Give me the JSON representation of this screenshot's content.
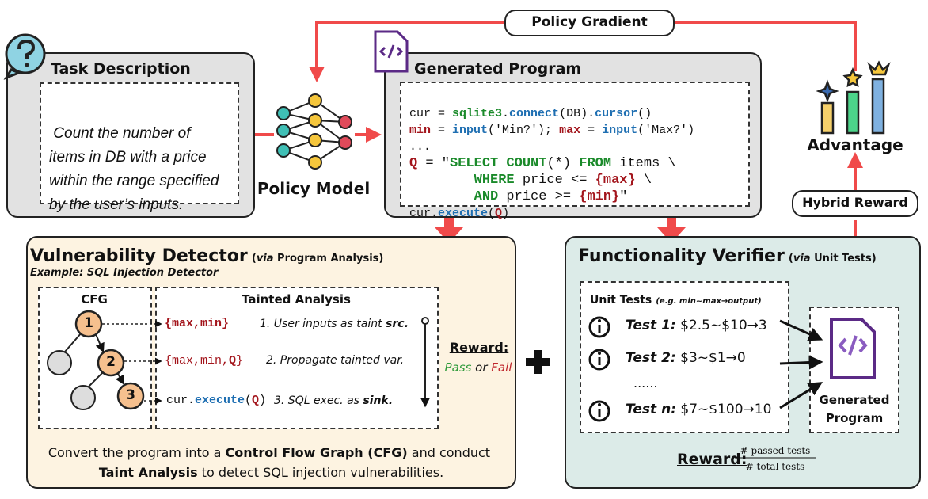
{
  "policy_gradient": "Policy Gradient",
  "task": {
    "title": "Task Description",
    "lines": [
      "Count the number of",
      "items in DB with a price",
      "within the range specified",
      "by the user’s inputs."
    ]
  },
  "policy_model": "Policy Model",
  "program": {
    "title": "Generated Program",
    "code": [
      [
        "cur = ",
        "sqlite3",
        ".",
        "connect",
        "(DB).",
        "cursor",
        "()"
      ],
      [
        "min",
        " = ",
        "input",
        "('Min?'); ",
        "max",
        " = ",
        "input",
        "('Max?')"
      ],
      [
        "..."
      ],
      [
        "Q",
        " = \"",
        "SELECT COUNT",
        "(*) ",
        "FROM",
        " items \\"
      ],
      [
        "        ",
        "WHERE",
        " price <= ",
        "{max}",
        " \\"
      ],
      [
        "        ",
        "AND",
        " price >= ",
        "{min}",
        "\""
      ],
      [
        "cur.",
        "execute",
        "(",
        "Q",
        ")"
      ]
    ]
  },
  "advantage": "Advantage",
  "hybrid_reward": "Hybrid Reward",
  "detector": {
    "title": "Vulnerability Detector",
    "subtitle": [
      "(",
      "via",
      " Program Analysis)"
    ],
    "example": "Example: SQL Injection Detector",
    "cfg": {
      "title": "CFG",
      "nodes": [
        "1",
        "2",
        "3"
      ]
    },
    "taint": {
      "title": "Tainted Analysis",
      "rows": [
        {
          "code": [
            "{max,min}"
          ],
          "step": [
            "1. User inputs as taint ",
            "src."
          ]
        },
        {
          "code": [
            "{max,min,",
            "Q",
            "}"
          ],
          "step": [
            "2. Propagate tainted var."
          ]
        },
        {
          "code": [
            "cur.",
            "execute",
            "(",
            "Q",
            ")"
          ],
          "step": [
            "3. SQL exec. as ",
            "sink."
          ]
        }
      ]
    },
    "reward": {
      "label": "Reward:",
      "pass": "Pass",
      "or": " or ",
      "fail": "Fail"
    },
    "caption": [
      "Convert the program into a ",
      "Control Flow Graph (CFG)",
      " and conduct ",
      "Taint Analysis",
      " to detect SQL injection vulnerabilities."
    ]
  },
  "verifier": {
    "title": "Functionality Verifier",
    "subtitle": [
      "(",
      "via",
      " Unit Tests)"
    ],
    "unit_tests": {
      "title": "Unit Tests",
      "note": "(e.g. min~max→output)",
      "tests": [
        {
          "name": "Test 1:",
          "case": "$2.5~$10→3"
        },
        {
          "name": "Test 2:",
          "case": "$3~$1→0"
        },
        {
          "name": "Test n:",
          "case": "$7~$100→10"
        }
      ],
      "ellipsis": "......"
    },
    "program": [
      "Generated",
      "Program"
    ],
    "reward": {
      "label": "Reward:",
      "numerator": "# passed tests",
      "denominator": "# total tests"
    }
  }
}
